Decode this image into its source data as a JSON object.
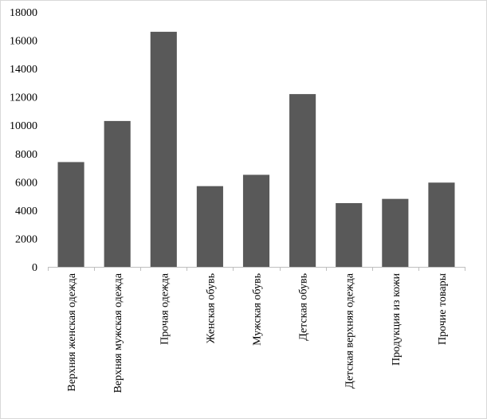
{
  "chart_data": {
    "type": "bar",
    "title": "",
    "xlabel": "",
    "ylabel": "",
    "ylim": [
      0,
      18000
    ],
    "yticks": [
      0,
      2000,
      4000,
      6000,
      8000,
      10000,
      12000,
      14000,
      16000,
      18000
    ],
    "grid": false,
    "legend": "none",
    "bar_color": "#595959",
    "categories": [
      "Верхняя женская одежда",
      "Верхняя мужская одежда",
      "Прочая одежда",
      "Женская обувь",
      "Мужская обувь",
      "Детская обувь",
      "Детская верхняя одежда",
      "Продукция из кожи",
      "Прочие товары"
    ],
    "values": [
      7400,
      10300,
      16600,
      5700,
      6500,
      12200,
      4500,
      4800,
      5950
    ]
  }
}
